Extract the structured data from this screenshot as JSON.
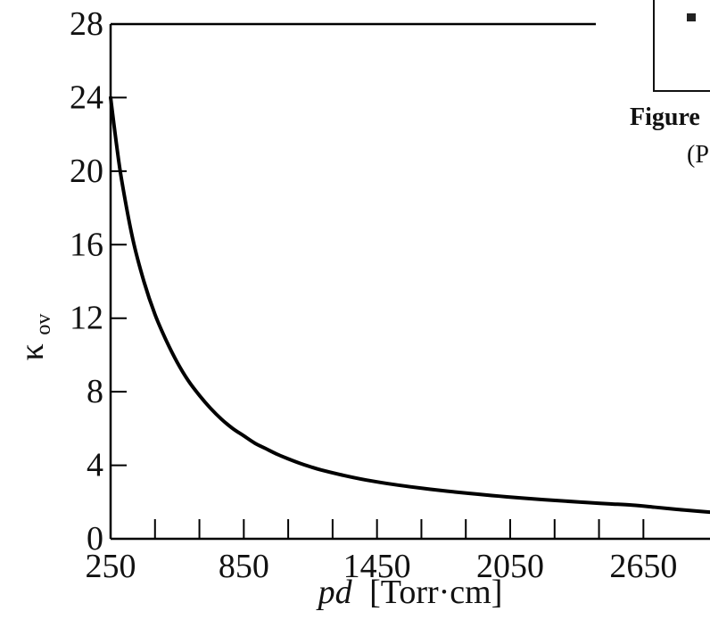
{
  "chart_data": {
    "type": "line",
    "title": "",
    "xlabel": "pd [Torr·cm]",
    "xlabel_italic": "pd",
    "xlabel_rest": "[Torr·cm]",
    "ylabel": "κov",
    "ylabel_symbol": "κ",
    "ylabel_subscript": "ov",
    "xlim": [
      250,
      2950
    ],
    "ylim": [
      0,
      28
    ],
    "xticks": [
      250,
      850,
      1450,
      2050,
      2650
    ],
    "xticks_minor": [
      250,
      450,
      650,
      850,
      1050,
      1250,
      1450,
      1650,
      1850,
      2050,
      2250,
      2450,
      2650
    ],
    "yticks": [
      0,
      4,
      8,
      12,
      16,
      20,
      24,
      28
    ],
    "grid": false,
    "series": [
      {
        "color": "#000000",
        "x": [
          250,
          275,
          300,
          350,
          400,
          450,
          500,
          550,
          600,
          650,
          700,
          750,
          800,
          850,
          900,
          950,
          1000,
          1050,
          1100,
          1150,
          1200,
          1300,
          1400,
          1500,
          1600,
          1700,
          1800,
          1900,
          2000,
          2100,
          2200,
          2300,
          2400,
          2500,
          2600,
          2700,
          2800,
          2900,
          2950
        ],
        "y": [
          24.0,
          21.6,
          19.5,
          16.3,
          14.0,
          12.2,
          10.8,
          9.6,
          8.6,
          7.8,
          7.1,
          6.5,
          6.0,
          5.6,
          5.2,
          4.9,
          4.6,
          4.35,
          4.12,
          3.92,
          3.74,
          3.45,
          3.2,
          3.0,
          2.83,
          2.68,
          2.55,
          2.43,
          2.32,
          2.22,
          2.13,
          2.05,
          1.97,
          1.9,
          1.83,
          1.72,
          1.6,
          1.5,
          1.45
        ]
      }
    ]
  },
  "inset": {
    "caption": "Figure",
    "sub": "(P"
  }
}
